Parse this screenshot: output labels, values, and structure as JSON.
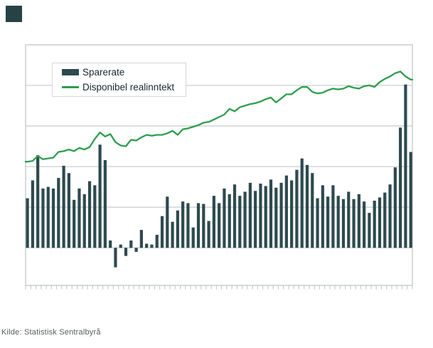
{
  "logo": {
    "color": "#274247"
  },
  "legend": {
    "items": [
      {
        "label": "Sparerate",
        "swatch": "bar-swatch"
      },
      {
        "label": "Disponibel realinntekt",
        "swatch": "line-swatch"
      }
    ]
  },
  "source": {
    "text": "Kilde: Statistisk Sentralbyrå"
  },
  "colors": {
    "bar": "#2d4a4f",
    "line": "#2b9e4d",
    "grid": "#c6cbcc",
    "legend_border": "#d6d6d6",
    "text": "#16282e",
    "source_text": "#565b5c",
    "logo": "#274247",
    "background": "#ffffff"
  },
  "chart_data": {
    "type": "bar",
    "subtype": "combo bar+line, quarterly observations",
    "title": "",
    "xlabel": "",
    "ylabel": "",
    "x_count": 75,
    "x_tick_labels_visible": false,
    "y_tick_labels_visible": false,
    "grid": "horizontal",
    "legend_position": "inside top-left",
    "y_axis": {
      "ylim": [
        -5,
        25
      ],
      "gridline_values_drawn": [
        0,
        5,
        10,
        15,
        20
      ],
      "frame_top_value": 25,
      "value_scale_note": "axis unlabeled in image; values estimated with 1 gridline interval = 5 units, bar baseline = 0"
    },
    "x_axis": {
      "tick_count": 76,
      "labels": []
    },
    "series": [
      {
        "name": "Sparerate",
        "type": "bar",
        "color": "#2d4a4f",
        "values": [
          6.1,
          8.3,
          11.4,
          7.3,
          7.5,
          7.3,
          8.6,
          10.1,
          9.2,
          5.9,
          7.3,
          6.6,
          8.2,
          7.7,
          12.7,
          10.8,
          0.9,
          -2.4,
          0.4,
          -1.0,
          0.9,
          -0.5,
          2.2,
          0.5,
          0.4,
          1.6,
          3.9,
          6.3,
          3.2,
          4.6,
          5.7,
          5.5,
          2.5,
          5.5,
          5.4,
          3.3,
          6.4,
          5.5,
          7.3,
          6.6,
          7.8,
          6.4,
          6.9,
          8.0,
          7.0,
          7.9,
          7.6,
          8.4,
          7.4,
          8.0,
          8.9,
          8.3,
          9.6,
          11.0,
          10.2,
          9.2,
          6.1,
          7.7,
          6.3,
          7.7,
          6.4,
          6.0,
          6.9,
          6.0,
          6.6,
          5.7,
          4.3,
          5.8,
          6.2,
          6.8,
          7.8,
          9.9,
          14.8,
          20.1,
          11.8
        ]
      },
      {
        "name": "Disponibel realinntekt",
        "type": "line",
        "color": "#2b9e4d",
        "values": [
          10.6,
          10.7,
          11.3,
          10.9,
          11.0,
          11.1,
          11.8,
          11.9,
          12.1,
          11.9,
          12.3,
          12.1,
          12.4,
          13.4,
          14.2,
          13.7,
          14.0,
          13.0,
          12.6,
          12.5,
          13.3,
          13.2,
          13.6,
          13.9,
          13.8,
          13.9,
          13.9,
          14.1,
          14.4,
          13.9,
          14.6,
          14.7,
          14.9,
          15.1,
          15.4,
          15.5,
          15.8,
          16.1,
          16.4,
          17.1,
          16.8,
          17.3,
          17.5,
          17.7,
          17.8,
          18.0,
          18.3,
          18.5,
          17.9,
          18.4,
          18.9,
          18.9,
          19.4,
          19.8,
          19.8,
          19.2,
          19.0,
          19.1,
          19.4,
          19.6,
          19.5,
          19.6,
          19.9,
          19.7,
          19.6,
          19.9,
          20.0,
          19.8,
          20.4,
          20.8,
          21.1,
          21.5,
          21.7,
          21.1,
          20.7
        ]
      }
    ]
  }
}
